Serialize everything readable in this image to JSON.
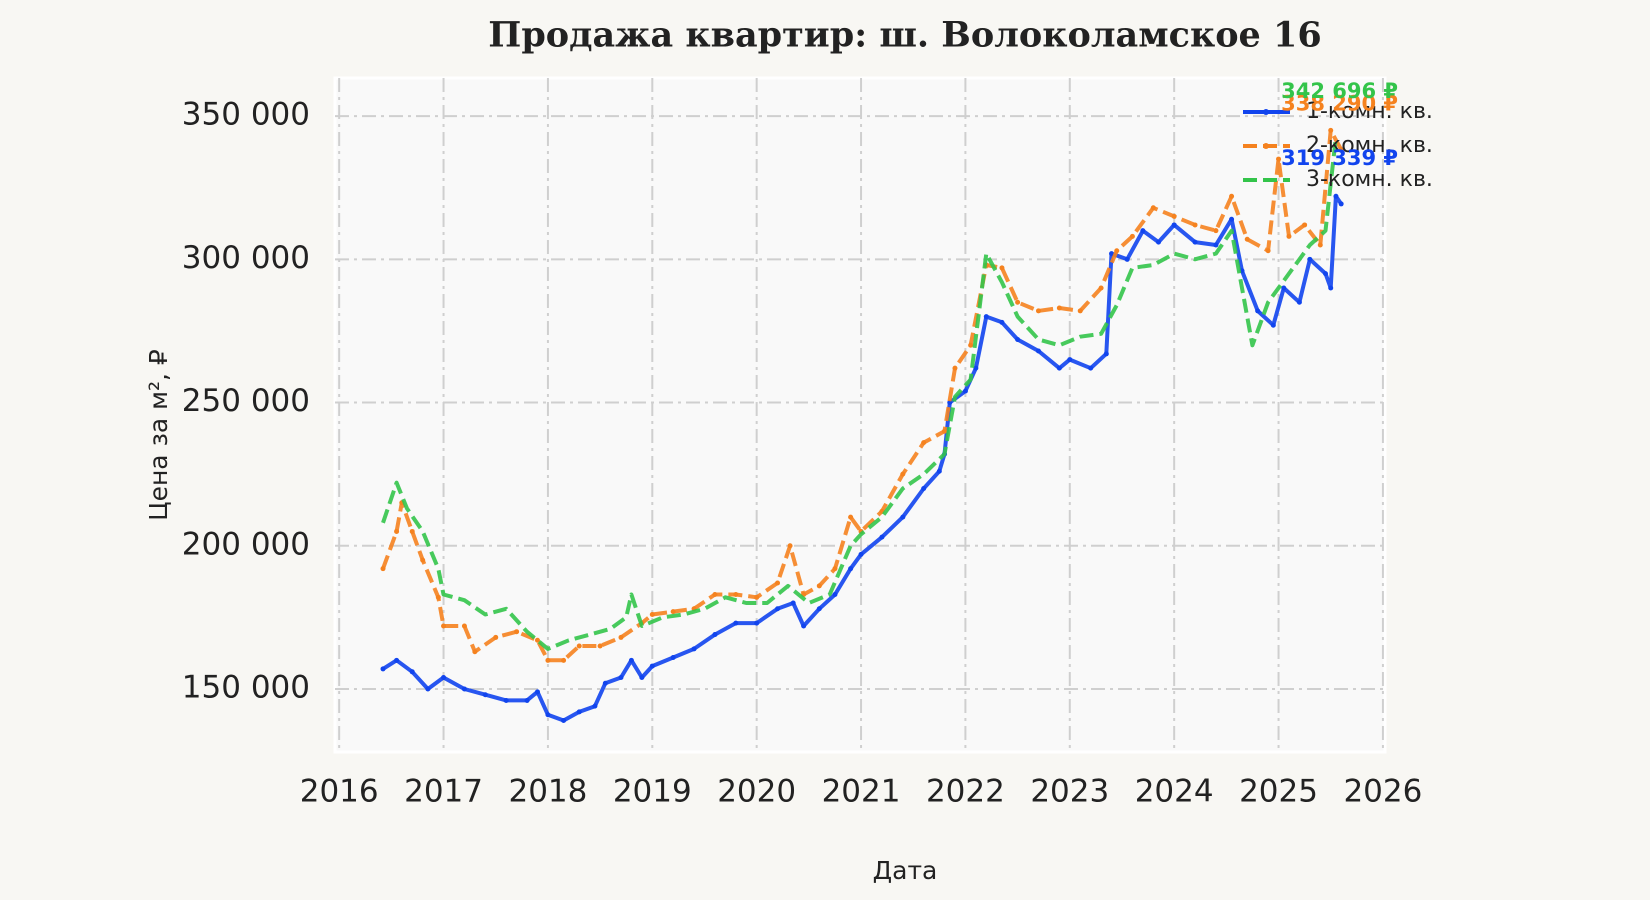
{
  "chart_data": {
    "type": "line",
    "title": "Продажа квартир: ш. Волоколамское 16",
    "x_label": "Дата",
    "y_label": "Цена за м², ₽",
    "xlim": [
      2015.96,
      2026.02
    ],
    "xticks": [
      2016,
      2017,
      2018,
      2019,
      2020,
      2021,
      2022,
      2023,
      2024,
      2025,
      2026
    ],
    "ylim": [
      128000,
      363300
    ],
    "yticks": [
      {
        "value": 150000,
        "label": "150 000"
      },
      {
        "value": 200000,
        "label": "200 000"
      },
      {
        "value": 250000,
        "label": "250 000"
      },
      {
        "value": 300000,
        "label": "300 000"
      },
      {
        "value": 350000,
        "label": "350 000"
      }
    ],
    "grid": true,
    "legend": "upper right",
    "series": [
      {
        "name": "1-комн. кв.",
        "color": "#1144ee",
        "linestyle": "solid",
        "marker": true,
        "x": [
          2016.42,
          2016.55,
          2016.7,
          2016.85,
          2017.0,
          2017.2,
          2017.4,
          2017.6,
          2017.8,
          2017.9,
          2018.0,
          2018.15,
          2018.3,
          2018.45,
          2018.55,
          2018.7,
          2018.8,
          2018.9,
          2019.0,
          2019.2,
          2019.4,
          2019.6,
          2019.8,
          2020.0,
          2020.2,
          2020.35,
          2020.45,
          2020.6,
          2020.75,
          2020.9,
          2021.0,
          2021.2,
          2021.4,
          2021.6,
          2021.75,
          2021.8,
          2021.85,
          2022.0,
          2022.1,
          2022.2,
          2022.35,
          2022.5,
          2022.7,
          2022.9,
          2023.0,
          2023.2,
          2023.35,
          2023.4,
          2023.55,
          2023.7,
          2023.85,
          2024.0,
          2024.2,
          2024.4,
          2024.55,
          2024.65,
          2024.8,
          2024.95,
          2025.05,
          2025.2,
          2025.3,
          2025.45,
          2025.5,
          2025.55,
          2025.6
        ],
        "values": [
          157000,
          160000,
          156000,
          150000,
          154000,
          150000,
          148000,
          146000,
          146000,
          149000,
          141000,
          139000,
          142000,
          144000,
          152000,
          154000,
          160000,
          154000,
          158000,
          161000,
          164000,
          169000,
          173000,
          173000,
          178000,
          180000,
          172000,
          178000,
          183000,
          192000,
          197000,
          203000,
          210000,
          220000,
          226000,
          232000,
          250000,
          254000,
          262000,
          280000,
          278000,
          272000,
          268000,
          262000,
          265000,
          262000,
          267000,
          302000,
          300000,
          310000,
          306000,
          312000,
          306000,
          305000,
          314000,
          296000,
          282000,
          277000,
          290000,
          285000,
          300000,
          295000,
          290000,
          322000,
          319339
        ],
        "value_labels": [
          null,
          null,
          null,
          null,
          null,
          null,
          null,
          null,
          null,
          null,
          null,
          null,
          null,
          null,
          null,
          null,
          null,
          null,
          null,
          null,
          null,
          null,
          null,
          null,
          null,
          null,
          null,
          null,
          null,
          null,
          null,
          null,
          null,
          null,
          null,
          null,
          null,
          null,
          null,
          null,
          null,
          null,
          null,
          null,
          null,
          null,
          null,
          null,
          null,
          null,
          null,
          null,
          null,
          null,
          null,
          null,
          null,
          null,
          null,
          null,
          null,
          null,
          null,
          null,
          "319 339 ₽"
        ]
      },
      {
        "name": "2-комн. кв.",
        "color": "#f5821f",
        "linestyle": "dashed",
        "marker": true,
        "x": [
          2016.42,
          2016.55,
          2016.6,
          2016.7,
          2016.8,
          2016.95,
          2017.0,
          2017.2,
          2017.3,
          2017.5,
          2017.7,
          2017.9,
          2018.0,
          2018.15,
          2018.3,
          2018.5,
          2018.7,
          2018.9,
          2019.0,
          2019.2,
          2019.4,
          2019.6,
          2019.8,
          2020.0,
          2020.2,
          2020.32,
          2020.45,
          2020.6,
          2020.75,
          2020.9,
          2021.0,
          2021.2,
          2021.4,
          2021.6,
          2021.8,
          2021.9,
          2022.05,
          2022.2,
          2022.35,
          2022.5,
          2022.7,
          2022.9,
          2023.1,
          2023.3,
          2023.45,
          2023.6,
          2023.8,
          2024.0,
          2024.2,
          2024.4,
          2024.55,
          2024.7,
          2024.9,
          2025.0,
          2025.1,
          2025.25,
          2025.4,
          2025.5,
          2025.6
        ],
        "values": [
          192000,
          205000,
          215000,
          205000,
          195000,
          182000,
          172000,
          172000,
          163000,
          168000,
          170000,
          167000,
          160000,
          160000,
          165000,
          165000,
          168000,
          173000,
          176000,
          177000,
          178000,
          183000,
          183000,
          182000,
          187000,
          200000,
          183000,
          186000,
          192000,
          210000,
          205000,
          212000,
          225000,
          236000,
          240000,
          262000,
          270000,
          298000,
          297000,
          285000,
          282000,
          283000,
          282000,
          290000,
          303000,
          308000,
          318000,
          315000,
          312000,
          310000,
          322000,
          307000,
          303000,
          335000,
          308000,
          312000,
          305000,
          345000,
          338290
        ],
        "value_labels": [
          null,
          null,
          null,
          null,
          null,
          null,
          null,
          null,
          null,
          null,
          null,
          null,
          null,
          null,
          null,
          null,
          null,
          null,
          null,
          null,
          null,
          null,
          null,
          null,
          null,
          null,
          null,
          null,
          null,
          null,
          null,
          null,
          null,
          null,
          null,
          null,
          null,
          null,
          null,
          null,
          null,
          null,
          null,
          null,
          null,
          null,
          null,
          null,
          null,
          null,
          null,
          null,
          null,
          null,
          null,
          null,
          null,
          null,
          "338 290 ₽"
        ]
      },
      {
        "name": "3-комн. кв.",
        "color": "#33c44a",
        "linestyle": "dashed",
        "marker": false,
        "x": [
          2016.42,
          2016.55,
          2016.65,
          2016.8,
          2016.95,
          2017.0,
          2017.2,
          2017.4,
          2017.6,
          2017.8,
          2018.0,
          2018.2,
          2018.4,
          2018.6,
          2018.75,
          2018.8,
          2018.9,
          2019.1,
          2019.3,
          2019.5,
          2019.7,
          2019.9,
          2020.1,
          2020.3,
          2020.5,
          2020.7,
          2020.9,
          2021.0,
          2021.2,
          2021.4,
          2021.6,
          2021.8,
          2021.9,
          2022.05,
          2022.2,
          2022.35,
          2022.5,
          2022.7,
          2022.9,
          2023.1,
          2023.3,
          2023.45,
          2023.6,
          2023.8,
          2024.0,
          2024.2,
          2024.4,
          2024.55,
          2024.65,
          2024.75,
          2024.9,
          2025.1,
          2025.3,
          2025.45,
          2025.55
        ],
        "values": [
          208000,
          222000,
          213000,
          205000,
          192000,
          183000,
          181000,
          176000,
          178000,
          170000,
          164000,
          167000,
          169000,
          171000,
          175000,
          183000,
          172000,
          175000,
          176000,
          178000,
          182000,
          180000,
          180000,
          186000,
          180000,
          183000,
          200000,
          204000,
          210000,
          220000,
          225000,
          232000,
          252000,
          258000,
          302000,
          292000,
          280000,
          272000,
          270000,
          273000,
          274000,
          284000,
          297000,
          298000,
          302000,
          300000,
          302000,
          310000,
          290000,
          270000,
          285000,
          295000,
          305000,
          310000,
          342696
        ],
        "value_labels": [
          null,
          null,
          null,
          null,
          null,
          null,
          null,
          null,
          null,
          null,
          null,
          null,
          null,
          null,
          null,
          null,
          null,
          null,
          null,
          null,
          null,
          null,
          null,
          null,
          null,
          null,
          null,
          null,
          null,
          null,
          null,
          null,
          null,
          null,
          null,
          null,
          null,
          null,
          null,
          null,
          null,
          null,
          null,
          null,
          null,
          null,
          null,
          null,
          null,
          null,
          null,
          null,
          null,
          null,
          "342 696 ₽"
        ]
      }
    ]
  }
}
